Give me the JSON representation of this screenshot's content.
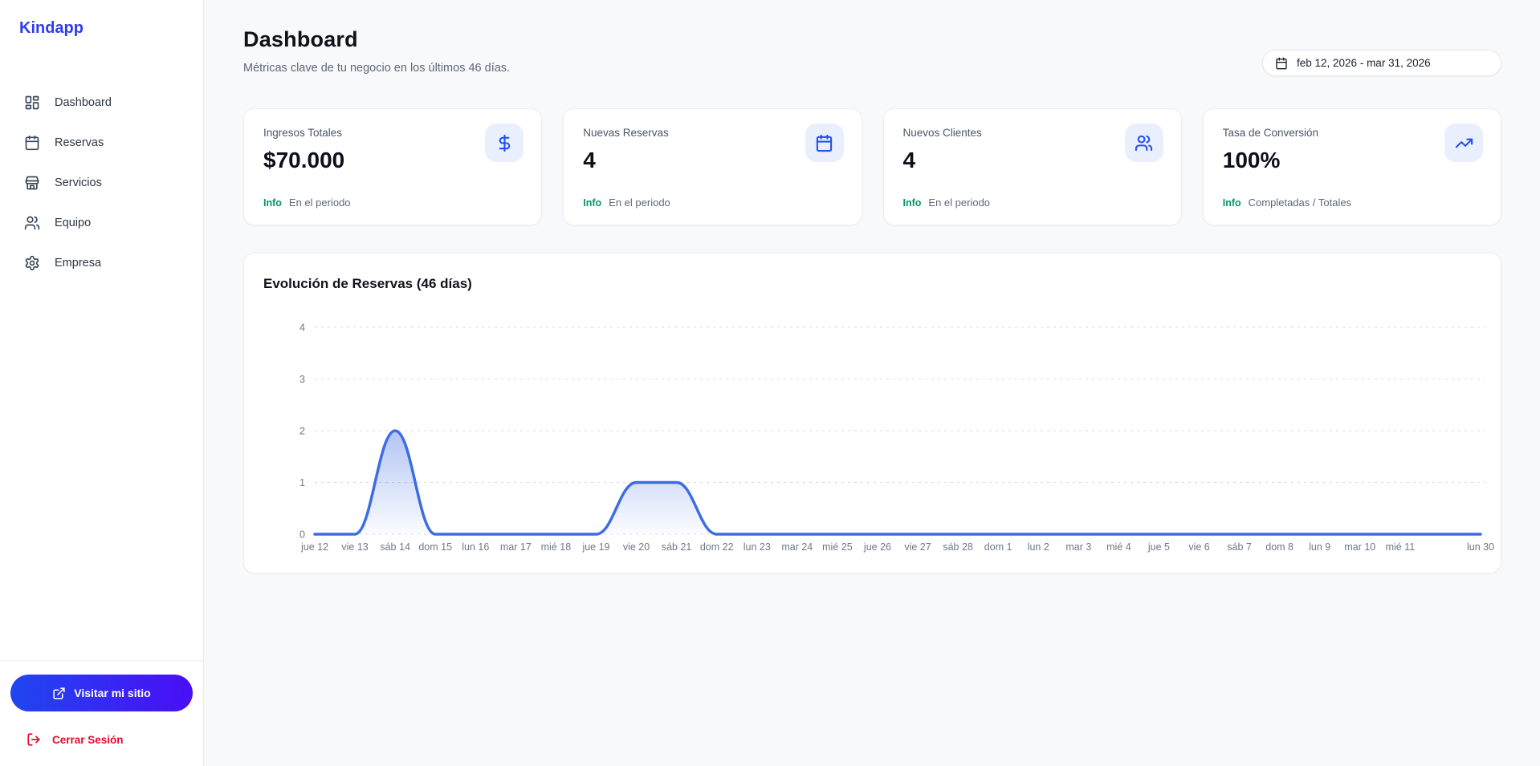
{
  "brand": {
    "name": "Kindapp",
    "color": "#2e3cf0"
  },
  "sidebar": {
    "items": [
      {
        "label": "Dashboard",
        "icon": "dashboard-icon"
      },
      {
        "label": "Reservas",
        "icon": "calendar-icon"
      },
      {
        "label": "Servicios",
        "icon": "store-icon"
      },
      {
        "label": "Equipo",
        "icon": "users-icon"
      },
      {
        "label": "Empresa",
        "icon": "gear-icon"
      }
    ],
    "visit_site_label": "Visitar mi sitio",
    "logout_label": "Cerrar Sesión"
  },
  "header": {
    "title": "Dashboard",
    "subtitle": "Métricas clave de tu negocio en los últimos 46 días.",
    "date_range": "feb 12, 2026 - mar 31, 2026"
  },
  "stats": [
    {
      "label": "Ingresos Totales",
      "value": "$70.000",
      "badge": "Info",
      "note": "En el periodo",
      "icon": "dollar-icon"
    },
    {
      "label": "Nuevas Reservas",
      "value": "4",
      "badge": "Info",
      "note": "En el periodo",
      "icon": "calendar-icon"
    },
    {
      "label": "Nuevos Clientes",
      "value": "4",
      "badge": "Info",
      "note": "En el periodo",
      "icon": "users-icon"
    },
    {
      "label": "Tasa de Conversión",
      "value": "100%",
      "badge": "Info",
      "note": "Completadas / Totales",
      "icon": "trending-up-icon"
    }
  ],
  "chart_data": {
    "type": "area",
    "title": "Evolución de Reservas (46 días)",
    "xlabel": "",
    "ylabel": "",
    "x_labels": [
      "jue 12",
      "vie 13",
      "sáb 14",
      "dom 15",
      "lun 16",
      "mar 17",
      "mié 18",
      "jue 19",
      "vie 20",
      "sáb 21",
      "dom 22",
      "lun 23",
      "mar 24",
      "mié 25",
      "jue 26",
      "vie 27",
      "sáb 28",
      "dom 1",
      "lun 2",
      "mar 3",
      "mié 4",
      "jue 5",
      "vie 6",
      "sáb 7",
      "dom 8",
      "lun 9",
      "mar 10",
      "mié 11",
      "",
      "lun 30"
    ],
    "values": [
      0,
      0,
      2,
      0,
      0,
      0,
      0,
      0,
      1,
      1,
      0,
      0,
      0,
      0,
      0,
      0,
      0,
      0,
      0,
      0,
      0,
      0,
      0,
      0,
      0,
      0,
      0,
      0,
      0,
      0
    ],
    "yticks": [
      0,
      1,
      2,
      3,
      4
    ],
    "ylim": [
      0,
      4
    ],
    "legend": "none",
    "grid": "horizontal-dashed",
    "line_color": "#3e6ce2",
    "fill_from": "rgba(62,108,226,0.40)",
    "fill_to": "rgba(62,108,226,0.02)",
    "grid_color": "#d8dbe2",
    "axis_text_color": "#6f7787"
  },
  "colors": {
    "accent_blue": "#2450f0",
    "icon_bg": "#e9effc",
    "info_green": "#059669",
    "logout_red": "#e40b2c",
    "button_gradient_start": "#2046f0",
    "button_gradient_end": "#4a0ef5",
    "page_bg": "#f8f9fb"
  }
}
